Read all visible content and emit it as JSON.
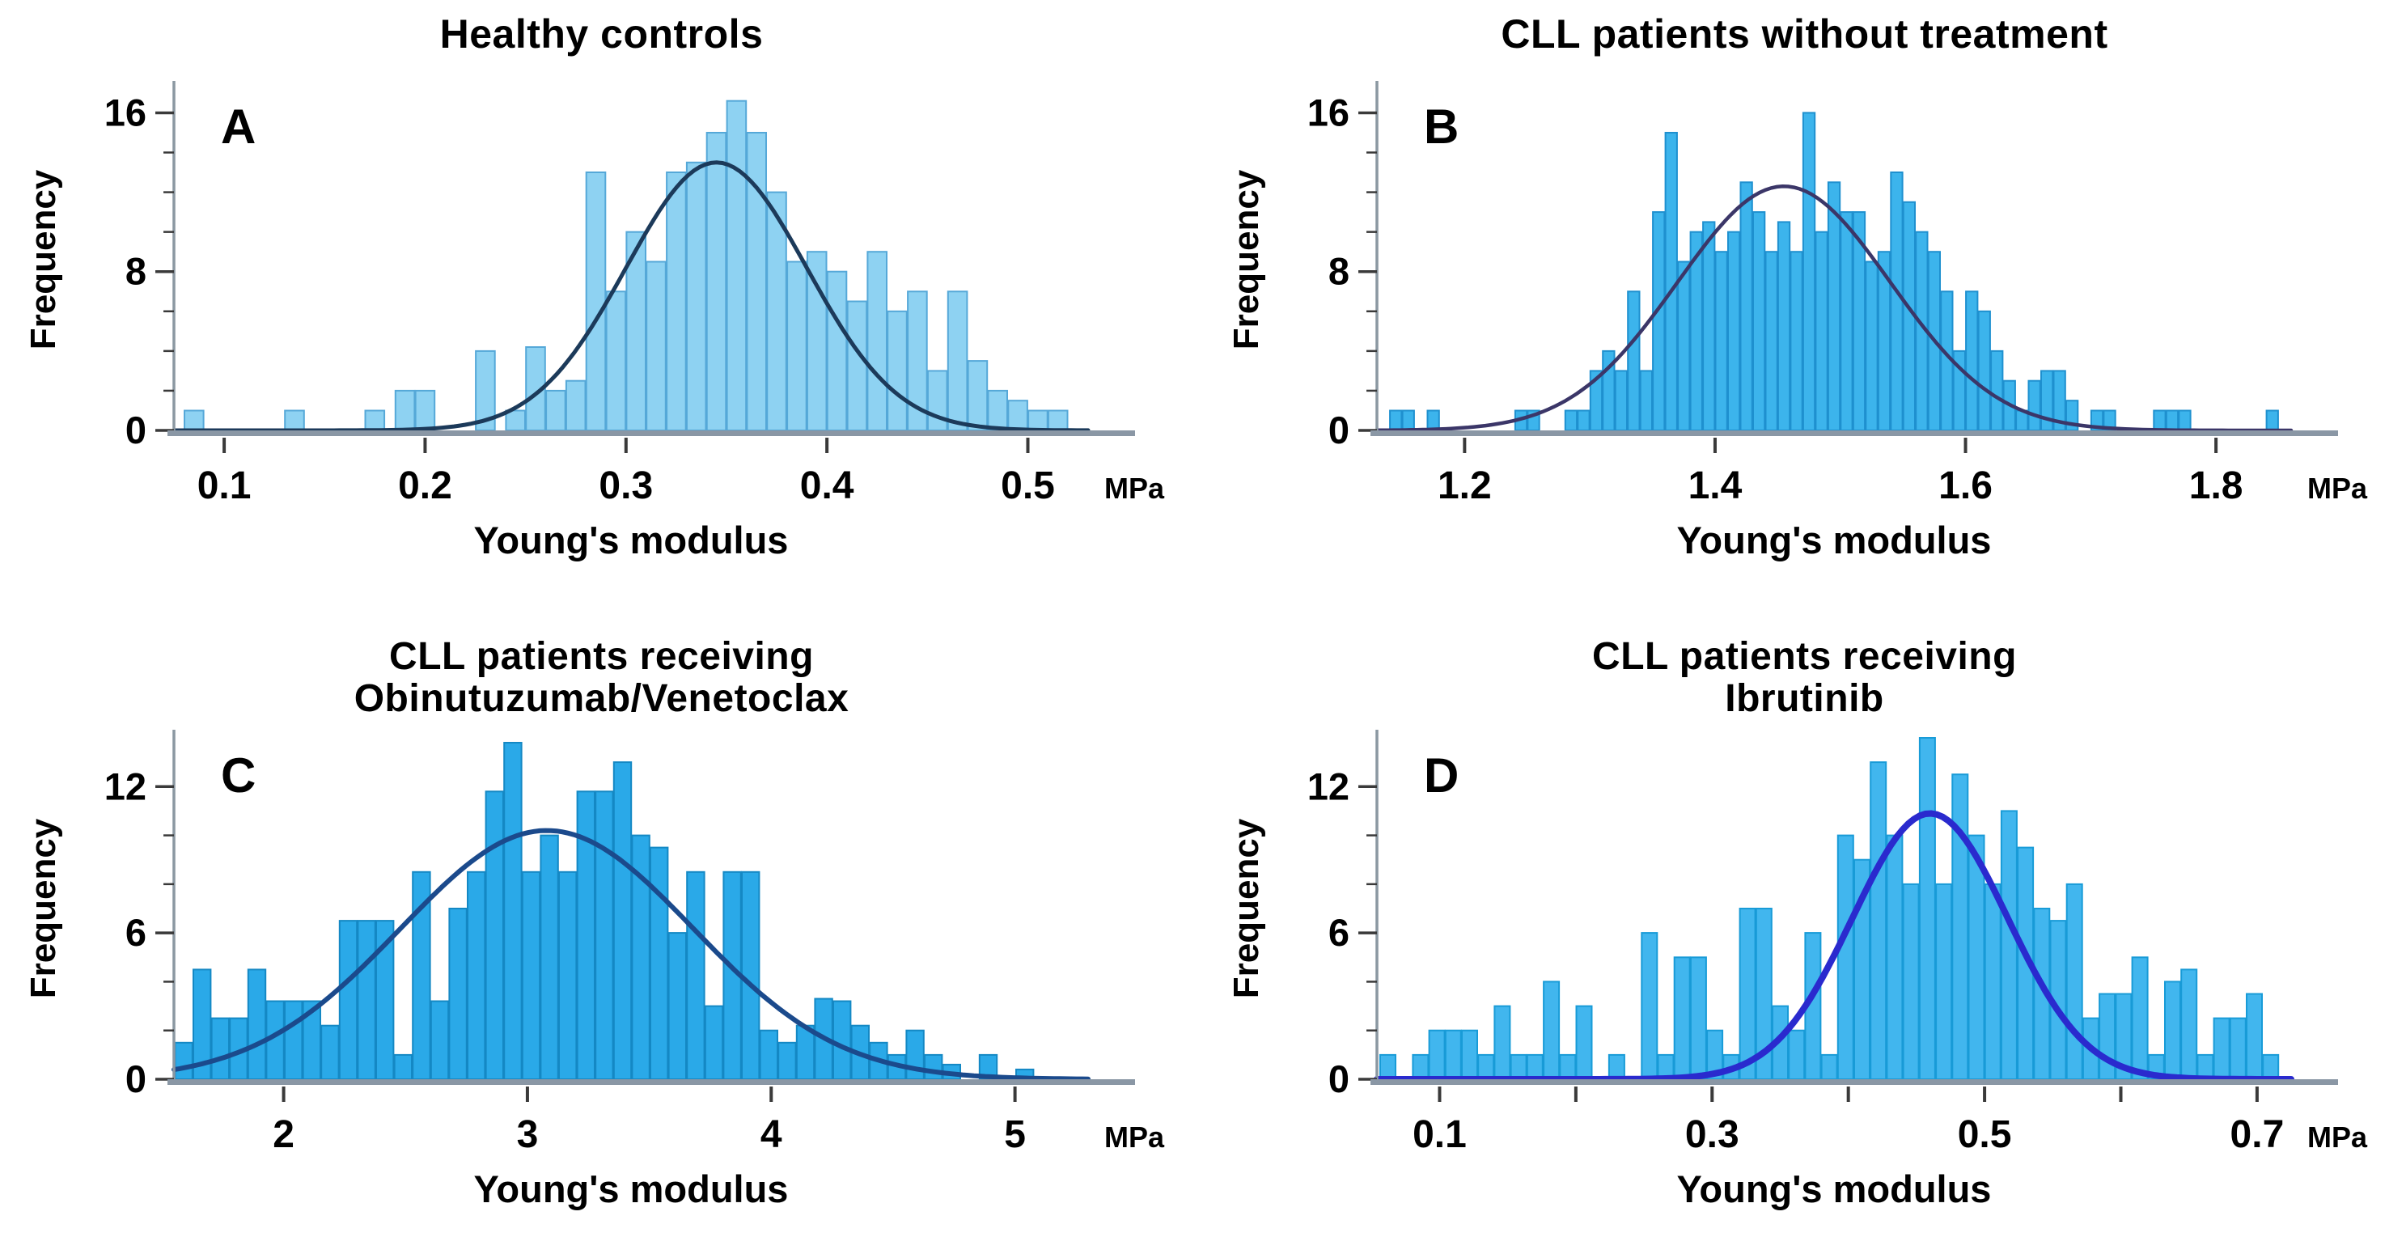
{
  "figure": {
    "background": "#ffffff",
    "axis_line_color": "#8b98a2",
    "baseline_color": "#8a97a5",
    "tick_color": "#3a3a3a",
    "text_color": "#000000"
  },
  "chart_data": [
    {
      "panel_label": "A",
      "title": "Healthy controls",
      "type": "bar",
      "subtype": "histogram-with-normal-fit",
      "xlabel": "Young's modulus",
      "x_unit": "MPa",
      "ylabel": "Frequency",
      "x_range": [
        0.075,
        0.53
      ],
      "ylim": [
        0,
        17.2
      ],
      "x_ticks": [
        {
          "v": 0.1,
          "label": "0.1"
        },
        {
          "v": 0.2,
          "label": "0.2"
        },
        {
          "v": 0.3,
          "label": "0.3"
        },
        {
          "v": 0.4,
          "label": "0.4"
        },
        {
          "v": 0.5,
          "label": "0.5"
        }
      ],
      "y_ticks": [
        {
          "v": 0,
          "label": "0"
        },
        {
          "v": 8,
          "label": "8"
        },
        {
          "v": 16,
          "label": "16"
        }
      ],
      "y_minor_step": 2,
      "bin_width": 0.01,
      "bars": [
        [
          0.085,
          1
        ],
        [
          0.135,
          1
        ],
        [
          0.175,
          1
        ],
        [
          0.19,
          2
        ],
        [
          0.2,
          2
        ],
        [
          0.23,
          4
        ],
        [
          0.245,
          1
        ],
        [
          0.255,
          4.2
        ],
        [
          0.265,
          2
        ],
        [
          0.275,
          2.5
        ],
        [
          0.285,
          13
        ],
        [
          0.295,
          7
        ],
        [
          0.305,
          10
        ],
        [
          0.315,
          8.5
        ],
        [
          0.325,
          13
        ],
        [
          0.335,
          13.5
        ],
        [
          0.345,
          15
        ],
        [
          0.355,
          16.6
        ],
        [
          0.365,
          15
        ],
        [
          0.375,
          12
        ],
        [
          0.385,
          8.5
        ],
        [
          0.395,
          9
        ],
        [
          0.405,
          8
        ],
        [
          0.415,
          6.5
        ],
        [
          0.425,
          9
        ],
        [
          0.435,
          6
        ],
        [
          0.445,
          7
        ],
        [
          0.455,
          3
        ],
        [
          0.465,
          7
        ],
        [
          0.475,
          3.5
        ],
        [
          0.485,
          2
        ],
        [
          0.495,
          1.5
        ],
        [
          0.505,
          1
        ],
        [
          0.515,
          1
        ]
      ],
      "fit_curve": {
        "mean": 0.345,
        "sd": 0.045,
        "peak": 13.5,
        "width": 5
      },
      "colors": {
        "bar_fill": "#8ed2f2",
        "bar_edge": "#55a8d8",
        "curve": "#1c3a5a"
      }
    },
    {
      "panel_label": "B",
      "title": "CLL patients without treatment",
      "type": "bar",
      "subtype": "histogram-with-normal-fit",
      "xlabel": "Young's modulus",
      "x_unit": "MPa",
      "ylabel": "Frequency",
      "x_range": [
        1.13,
        1.86
      ],
      "ylim": [
        0,
        17.2
      ],
      "x_ticks": [
        {
          "v": 1.2,
          "label": "1.2"
        },
        {
          "v": 1.4,
          "label": "1.4"
        },
        {
          "v": 1.6,
          "label": "1.6"
        },
        {
          "v": 1.8,
          "label": "1.8"
        }
      ],
      "y_ticks": [
        {
          "v": 0,
          "label": "0"
        },
        {
          "v": 8,
          "label": "8"
        },
        {
          "v": 16,
          "label": "16"
        }
      ],
      "y_minor_step": 2,
      "bin_width": 0.01,
      "bars": [
        [
          1.145,
          1
        ],
        [
          1.155,
          1
        ],
        [
          1.175,
          1
        ],
        [
          1.245,
          1
        ],
        [
          1.255,
          1
        ],
        [
          1.285,
          1
        ],
        [
          1.295,
          1
        ],
        [
          1.305,
          3
        ],
        [
          1.315,
          4
        ],
        [
          1.325,
          3
        ],
        [
          1.335,
          7
        ],
        [
          1.345,
          3
        ],
        [
          1.355,
          11
        ],
        [
          1.365,
          15
        ],
        [
          1.375,
          8.5
        ],
        [
          1.385,
          10
        ],
        [
          1.395,
          10.5
        ],
        [
          1.405,
          9
        ],
        [
          1.415,
          10
        ],
        [
          1.425,
          12.5
        ],
        [
          1.435,
          11
        ],
        [
          1.445,
          9
        ],
        [
          1.455,
          10.5
        ],
        [
          1.465,
          9
        ],
        [
          1.475,
          16
        ],
        [
          1.485,
          10
        ],
        [
          1.495,
          12.5
        ],
        [
          1.505,
          11
        ],
        [
          1.515,
          11
        ],
        [
          1.525,
          8.5
        ],
        [
          1.535,
          9
        ],
        [
          1.545,
          13
        ],
        [
          1.555,
          11.5
        ],
        [
          1.565,
          10
        ],
        [
          1.575,
          9
        ],
        [
          1.585,
          7
        ],
        [
          1.595,
          4
        ],
        [
          1.605,
          7
        ],
        [
          1.615,
          6
        ],
        [
          1.625,
          4
        ],
        [
          1.635,
          2.5
        ],
        [
          1.645,
          1
        ],
        [
          1.655,
          2.5
        ],
        [
          1.665,
          3
        ],
        [
          1.675,
          3
        ],
        [
          1.685,
          1.5
        ],
        [
          1.705,
          1
        ],
        [
          1.715,
          1
        ],
        [
          1.755,
          1
        ],
        [
          1.765,
          1
        ],
        [
          1.775,
          1
        ],
        [
          1.845,
          1
        ]
      ],
      "fit_curve": {
        "mean": 1.455,
        "sd": 0.085,
        "peak": 12.3,
        "width": 4.5
      },
      "colors": {
        "bar_fill": "#3cb4ec",
        "bar_edge": "#1e90cf",
        "curve": "#3b3668"
      }
    },
    {
      "panel_label": "C",
      "title": "CLL patients receiving\nObinutuzumab/Venetoclax",
      "type": "bar",
      "subtype": "histogram-with-normal-fit",
      "xlabel": "Young's modulus",
      "x_unit": "MPa",
      "ylabel": "Frequency",
      "x_range": [
        1.55,
        5.3
      ],
      "ylim": [
        0,
        14
      ],
      "x_ticks": [
        {
          "v": 2,
          "label": "2"
        },
        {
          "v": 3,
          "label": "3"
        },
        {
          "v": 4,
          "label": "4"
        },
        {
          "v": 5,
          "label": "5"
        }
      ],
      "y_ticks": [
        {
          "v": 0,
          "label": "0"
        },
        {
          "v": 6,
          "label": "6"
        },
        {
          "v": 12,
          "label": "12"
        }
      ],
      "y_minor_step": 2,
      "bin_width": 0.075,
      "bars": [
        [
          1.59,
          1.5
        ],
        [
          1.665,
          4.5
        ],
        [
          1.74,
          2.5
        ],
        [
          1.815,
          2.5
        ],
        [
          1.89,
          4.5
        ],
        [
          1.965,
          3.2
        ],
        [
          2.04,
          3.2
        ],
        [
          2.115,
          3.2
        ],
        [
          2.19,
          2.2
        ],
        [
          2.265,
          6.5
        ],
        [
          2.34,
          6.5
        ],
        [
          2.415,
          6.5
        ],
        [
          2.49,
          1
        ],
        [
          2.565,
          8.5
        ],
        [
          2.64,
          3.2
        ],
        [
          2.715,
          7
        ],
        [
          2.79,
          8.5
        ],
        [
          2.865,
          11.8
        ],
        [
          2.94,
          13.8
        ],
        [
          3.015,
          8.5
        ],
        [
          3.09,
          10
        ],
        [
          3.165,
          8.5
        ],
        [
          3.24,
          11.8
        ],
        [
          3.315,
          11.8
        ],
        [
          3.39,
          13
        ],
        [
          3.465,
          10
        ],
        [
          3.54,
          9.5
        ],
        [
          3.615,
          6
        ],
        [
          3.69,
          8.5
        ],
        [
          3.765,
          3
        ],
        [
          3.84,
          8.5
        ],
        [
          3.915,
          8.5
        ],
        [
          3.99,
          2
        ],
        [
          4.065,
          1.5
        ],
        [
          4.14,
          2.2
        ],
        [
          4.215,
          3.3
        ],
        [
          4.29,
          3.2
        ],
        [
          4.365,
          2.2
        ],
        [
          4.44,
          1.5
        ],
        [
          4.515,
          1
        ],
        [
          4.59,
          2
        ],
        [
          4.665,
          1
        ],
        [
          4.74,
          0.6
        ],
        [
          4.89,
          1
        ],
        [
          5.04,
          0.4
        ]
      ],
      "fit_curve": {
        "mean": 3.08,
        "sd": 0.6,
        "peak": 10.2,
        "width": 6
      },
      "colors": {
        "bar_fill": "#2aa9e8",
        "bar_edge": "#1488c4",
        "curve": "#1b4a8c"
      }
    },
    {
      "panel_label": "D",
      "title": "CLL patients receiving\nIbrutinib",
      "type": "bar",
      "subtype": "histogram-with-normal-fit",
      "xlabel": "Young's modulus",
      "x_unit": "MPa",
      "ylabel": "Frequency",
      "x_range": [
        0.054,
        0.725
      ],
      "ylim": [
        0,
        14
      ],
      "x_ticks": [
        {
          "v": 0.1,
          "label": "0.1"
        },
        {
          "v": 0.2,
          "label": ""
        },
        {
          "v": 0.3,
          "label": "0.3"
        },
        {
          "v": 0.4,
          "label": ""
        },
        {
          "v": 0.5,
          "label": "0.5"
        },
        {
          "v": 0.6,
          "label": ""
        },
        {
          "v": 0.7,
          "label": "0.7"
        }
      ],
      "y_ticks": [
        {
          "v": 0,
          "label": "0"
        },
        {
          "v": 6,
          "label": "6"
        },
        {
          "v": 12,
          "label": "12"
        }
      ],
      "y_minor_step": 2,
      "bin_width": 0.012,
      "bars": [
        [
          0.062,
          1
        ],
        [
          0.086,
          1
        ],
        [
          0.098,
          2
        ],
        [
          0.11,
          2
        ],
        [
          0.122,
          2
        ],
        [
          0.134,
          1
        ],
        [
          0.146,
          3
        ],
        [
          0.158,
          1
        ],
        [
          0.17,
          1
        ],
        [
          0.182,
          4
        ],
        [
          0.194,
          1
        ],
        [
          0.206,
          3
        ],
        [
          0.23,
          1
        ],
        [
          0.254,
          6
        ],
        [
          0.266,
          1
        ],
        [
          0.278,
          5
        ],
        [
          0.29,
          5
        ],
        [
          0.302,
          2
        ],
        [
          0.314,
          1
        ],
        [
          0.326,
          7
        ],
        [
          0.338,
          7
        ],
        [
          0.35,
          3
        ],
        [
          0.362,
          2
        ],
        [
          0.374,
          6
        ],
        [
          0.386,
          1
        ],
        [
          0.398,
          10
        ],
        [
          0.41,
          9
        ],
        [
          0.422,
          13
        ],
        [
          0.434,
          10
        ],
        [
          0.446,
          8
        ],
        [
          0.458,
          14
        ],
        [
          0.47,
          8
        ],
        [
          0.482,
          12.5
        ],
        [
          0.494,
          10
        ],
        [
          0.506,
          8
        ],
        [
          0.518,
          11
        ],
        [
          0.53,
          9.5
        ],
        [
          0.542,
          7
        ],
        [
          0.554,
          6.5
        ],
        [
          0.566,
          8
        ],
        [
          0.578,
          2.5
        ],
        [
          0.59,
          3.5
        ],
        [
          0.602,
          3.5
        ],
        [
          0.614,
          5
        ],
        [
          0.626,
          1
        ],
        [
          0.638,
          4
        ],
        [
          0.65,
          4.5
        ],
        [
          0.662,
          1
        ],
        [
          0.674,
          2.5
        ],
        [
          0.686,
          2.5
        ],
        [
          0.698,
          3.5
        ],
        [
          0.71,
          1
        ]
      ],
      "fit_curve": {
        "mean": 0.46,
        "sd": 0.057,
        "peak": 10.9,
        "width": 8
      },
      "colors": {
        "bar_fill": "#41b6ee",
        "bar_edge": "#189bd7",
        "curve": "#2a2ace"
      }
    }
  ]
}
